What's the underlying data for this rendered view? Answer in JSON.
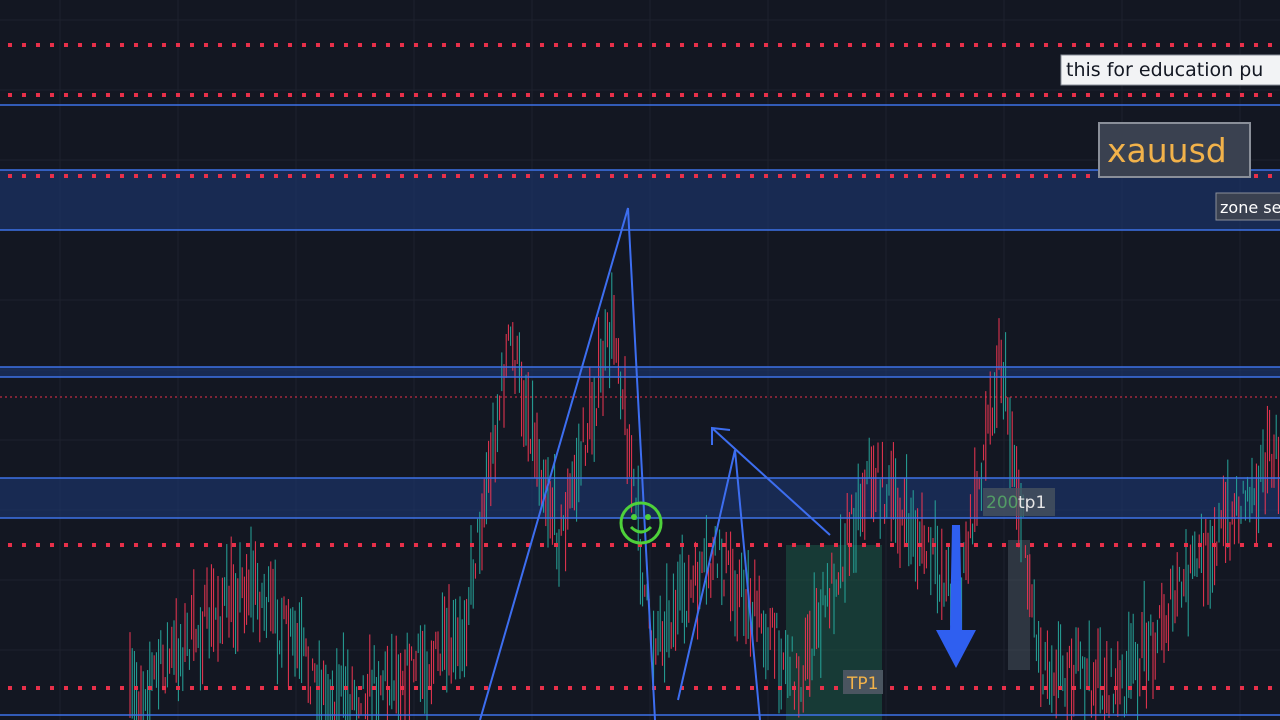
{
  "annotations": {
    "education": "this for education pu",
    "symbol": "xauusd",
    "zone": "zone se",
    "tp1_upper_pips": "200",
    "tp1_upper": "tp1",
    "tp1_lower": "TP1"
  }
}
